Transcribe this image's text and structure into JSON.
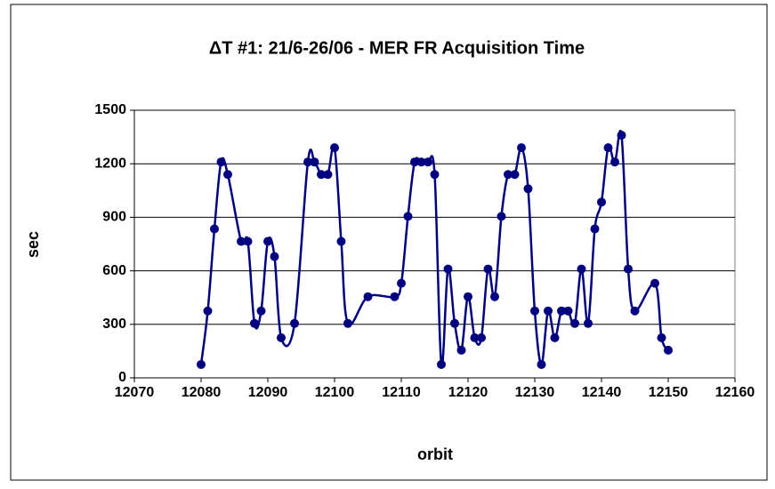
{
  "chart_data": {
    "type": "line",
    "title": "ΔT #1: 21/6-26/06 - MER FR Acquisition Time",
    "x_label": "orbit",
    "y_label": "sec",
    "x": [
      12080,
      12081,
      12082,
      12083,
      12084,
      12086,
      12087,
      12088,
      12089,
      12090,
      12091,
      12092,
      12094,
      12096,
      12097,
      12098,
      12099,
      12100,
      12101,
      12102,
      12105,
      12109,
      12110,
      12111,
      12112,
      12113,
      12114,
      12115,
      12116,
      12117,
      12118,
      12119,
      12120,
      12121,
      12122,
      12123,
      12124,
      12125,
      12126,
      12127,
      12128,
      12129,
      12130,
      12131,
      12132,
      12133,
      12134,
      12135,
      12136,
      12137,
      12138,
      12139,
      12140,
      12141,
      12142,
      12143,
      12144,
      12145,
      12148,
      12149,
      12150
    ],
    "series": [
      {
        "name": "sec",
        "color": "#000080",
        "values": [
          75,
          375,
          835,
          1210,
          1140,
          765,
          765,
          305,
          375,
          765,
          680,
          225,
          305,
          1210,
          1210,
          1140,
          1140,
          1290,
          765,
          305,
          455,
          455,
          530,
          905,
          1210,
          1210,
          1210,
          1140,
          75,
          610,
          305,
          155,
          455,
          225,
          225,
          610,
          455,
          905,
          1140,
          1140,
          1290,
          1060,
          375,
          75,
          375,
          225,
          375,
          375,
          305,
          610,
          305,
          835,
          985,
          1290,
          1210,
          1360,
          610,
          375,
          530,
          225,
          155
        ]
      }
    ],
    "xlim": [
      12070,
      12160
    ],
    "xticks": [
      12070,
      12080,
      12090,
      12100,
      12110,
      12120,
      12130,
      12140,
      12150,
      12160
    ],
    "ylim": [
      0,
      1500
    ],
    "yticks": [
      0,
      300,
      600,
      900,
      1200,
      1500
    ],
    "grid": true
  }
}
